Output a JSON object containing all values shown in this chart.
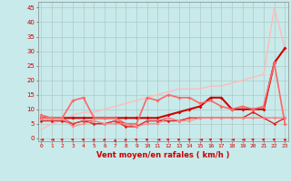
{
  "xlabel": "Vent moyen/en rafales ( km/h )",
  "xlim": [
    -0.3,
    23.3
  ],
  "ylim": [
    -1,
    47
  ],
  "yticks": [
    0,
    5,
    10,
    15,
    20,
    25,
    30,
    35,
    40,
    45
  ],
  "xticks": [
    0,
    1,
    2,
    3,
    4,
    5,
    6,
    7,
    8,
    9,
    10,
    11,
    12,
    13,
    14,
    15,
    16,
    17,
    18,
    19,
    20,
    21,
    22,
    23
  ],
  "background_color": "#c8eaea",
  "grid_color": "#b0c8c8",
  "series": [
    {
      "x": [
        0,
        1,
        2,
        3,
        4,
        5,
        6,
        7,
        8,
        9,
        10,
        11,
        12,
        13,
        14,
        15,
        16,
        17,
        18,
        19,
        20,
        21,
        22,
        23
      ],
      "y": [
        3,
        5,
        6,
        8,
        9,
        9,
        10,
        11,
        12,
        13,
        14,
        15,
        16,
        17,
        17,
        17,
        18,
        18,
        19,
        20,
        21,
        22,
        45,
        31
      ],
      "color": "#ffbbbb",
      "marker": null,
      "lw": 1.0
    },
    {
      "x": [
        0,
        1,
        2,
        3,
        4,
        5,
        6,
        7,
        8,
        9,
        10,
        11,
        12,
        13,
        14,
        15,
        16,
        17,
        18,
        19,
        20,
        21,
        22,
        23
      ],
      "y": [
        7,
        7,
        7,
        7,
        7,
        7,
        7,
        7,
        7,
        7,
        7,
        7,
        8,
        9,
        10,
        11,
        14,
        14,
        10,
        10,
        10,
        10,
        26,
        31
      ],
      "color": "#cc0000",
      "marker": "D",
      "lw": 1.5,
      "ms": 2.0
    },
    {
      "x": [
        0,
        1,
        2,
        3,
        4,
        5,
        6,
        7,
        8,
        9,
        10,
        11,
        12,
        13,
        14,
        15,
        16,
        17,
        18,
        19,
        20,
        21,
        22,
        23
      ],
      "y": [
        8,
        7,
        7,
        13,
        14,
        7,
        7,
        7,
        5,
        5,
        14,
        13,
        15,
        14,
        14,
        12,
        13,
        11,
        10,
        11,
        10,
        11,
        26,
        5
      ],
      "color": "#ff6666",
      "marker": "D",
      "lw": 1.2,
      "ms": 2.0
    },
    {
      "x": [
        0,
        1,
        2,
        3,
        4,
        5,
        6,
        7,
        8,
        9,
        10,
        11,
        12,
        13,
        14,
        15,
        16,
        17,
        18,
        19,
        20,
        21,
        22,
        23
      ],
      "y": [
        6,
        6,
        6,
        5,
        6,
        5,
        5,
        6,
        4,
        4,
        6,
        6,
        6,
        6,
        7,
        7,
        7,
        7,
        7,
        7,
        9,
        7,
        5,
        7
      ],
      "color": "#dd2222",
      "marker": "D",
      "lw": 1.0,
      "ms": 1.8
    },
    {
      "x": [
        0,
        1,
        2,
        3,
        4,
        5,
        6,
        7,
        8,
        9,
        10,
        11,
        12,
        13,
        14,
        15,
        16,
        17,
        18,
        19,
        20,
        21,
        22,
        23
      ],
      "y": [
        7,
        7,
        7,
        5,
        6,
        6,
        5,
        6,
        5,
        4,
        6,
        6,
        7,
        6,
        7,
        7,
        7,
        7,
        7,
        7,
        7,
        7,
        7,
        7
      ],
      "color": "#ee4444",
      "marker": "D",
      "lw": 0.8,
      "ms": 1.5
    },
    {
      "x": [
        0,
        1,
        2,
        3,
        4,
        5,
        6,
        7,
        8,
        9,
        10,
        11,
        12,
        13,
        14,
        15,
        16,
        17,
        18,
        19,
        20,
        21,
        22,
        23
      ],
      "y": [
        7,
        7,
        7,
        4,
        5,
        6,
        5,
        5,
        5,
        4,
        5,
        5,
        7,
        6,
        6,
        7,
        7,
        7,
        7,
        7,
        7,
        7,
        7,
        7
      ],
      "color": "#ff8888",
      "marker": "D",
      "lw": 0.8,
      "ms": 1.5
    }
  ],
  "wind_arrows": {
    "color": "#dd2222",
    "x": [
      0,
      1,
      2,
      3,
      4,
      5,
      6,
      7,
      8,
      9,
      10,
      11,
      12,
      13,
      14,
      15,
      16,
      17,
      18,
      19,
      20,
      21,
      22,
      23
    ],
    "angles_deg": [
      270,
      270,
      225,
      225,
      225,
      315,
      315,
      180,
      315,
      225,
      225,
      270,
      225,
      225,
      225,
      270,
      225,
      225,
      270,
      270,
      225,
      225,
      225,
      45
    ]
  }
}
